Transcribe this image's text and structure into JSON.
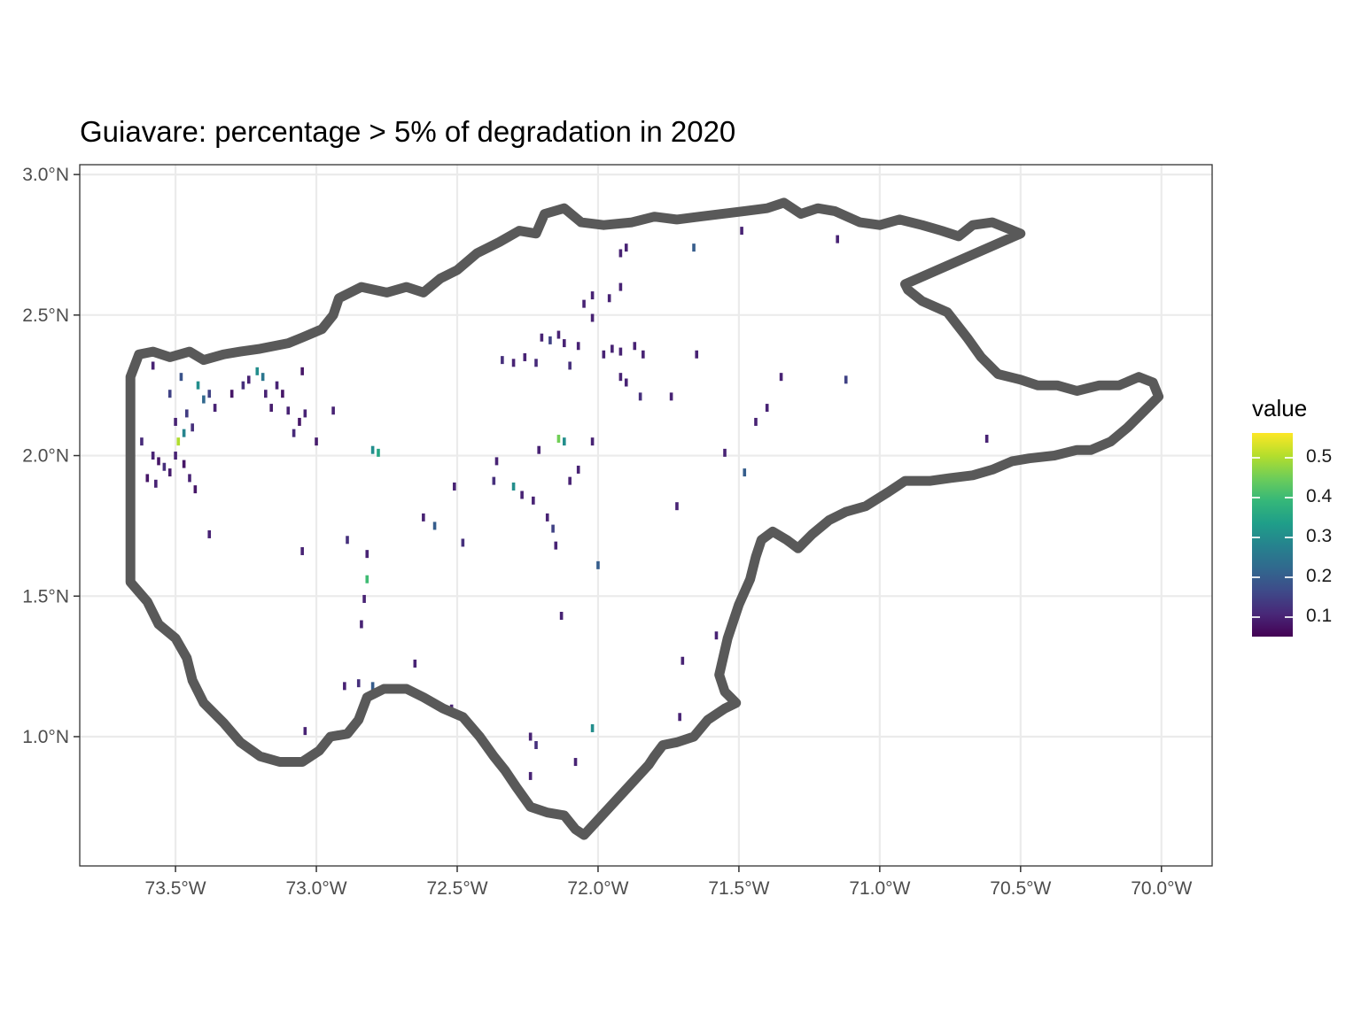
{
  "chart_data": {
    "type": "map-raster",
    "title": "Guiavare: percentage > 5% of degradation in 2020",
    "x_ticks": [
      "73.5°W",
      "73.0°W",
      "72.5°W",
      "72.0°W",
      "71.5°W",
      "71.0°W",
      "70.5°W",
      "70.0°W"
    ],
    "x_tick_values": [
      -73.5,
      -73.0,
      -72.5,
      -72.0,
      -71.5,
      -71.0,
      -70.5,
      -70.0
    ],
    "y_ticks": [
      "1.0°N",
      "1.5°N",
      "2.0°N",
      "2.5°N",
      "3.0°N"
    ],
    "y_tick_values": [
      1.0,
      1.5,
      2.0,
      2.5,
      3.0
    ],
    "xlim": [
      -73.84,
      -69.82
    ],
    "ylim": [
      0.54,
      3.035
    ],
    "grid": true,
    "legend": {
      "title": "value",
      "labels": [
        "0.5",
        "0.4",
        "0.3",
        "0.2",
        "0.1"
      ],
      "values": [
        0.5,
        0.4,
        0.3,
        0.2,
        0.1
      ],
      "range": [
        0.05,
        0.56
      ],
      "colormap": "viridis",
      "position": "right"
    },
    "outline_color": "#595959",
    "boundary": [
      [
        -73.66,
        2.28
      ],
      [
        -73.63,
        2.36
      ],
      [
        -73.58,
        2.37
      ],
      [
        -73.52,
        2.35
      ],
      [
        -73.45,
        2.37
      ],
      [
        -73.4,
        2.34
      ],
      [
        -73.33,
        2.36
      ],
      [
        -73.27,
        2.37
      ],
      [
        -73.2,
        2.38
      ],
      [
        -73.1,
        2.4
      ],
      [
        -73.05,
        2.42
      ],
      [
        -72.98,
        2.45
      ],
      [
        -72.94,
        2.5
      ],
      [
        -72.92,
        2.56
      ],
      [
        -72.84,
        2.6
      ],
      [
        -72.75,
        2.58
      ],
      [
        -72.68,
        2.6
      ],
      [
        -72.62,
        2.58
      ],
      [
        -72.56,
        2.63
      ],
      [
        -72.5,
        2.66
      ],
      [
        -72.43,
        2.72
      ],
      [
        -72.35,
        2.76
      ],
      [
        -72.28,
        2.8
      ],
      [
        -72.22,
        2.79
      ],
      [
        -72.19,
        2.86
      ],
      [
        -72.12,
        2.88
      ],
      [
        -72.06,
        2.83
      ],
      [
        -71.98,
        2.82
      ],
      [
        -71.88,
        2.83
      ],
      [
        -71.8,
        2.85
      ],
      [
        -71.72,
        2.84
      ],
      [
        -71.64,
        2.85
      ],
      [
        -71.56,
        2.86
      ],
      [
        -71.48,
        2.87
      ],
      [
        -71.4,
        2.88
      ],
      [
        -71.34,
        2.9
      ],
      [
        -71.28,
        2.86
      ],
      [
        -71.22,
        2.88
      ],
      [
        -71.16,
        2.87
      ],
      [
        -71.07,
        2.83
      ],
      [
        -71.0,
        2.82
      ],
      [
        -70.93,
        2.84
      ],
      [
        -70.85,
        2.82
      ],
      [
        -70.78,
        2.8
      ],
      [
        -70.72,
        2.78
      ],
      [
        -70.67,
        2.82
      ],
      [
        -70.6,
        2.83
      ],
      [
        -70.5,
        2.79
      ],
      [
        -70.91,
        2.61
      ],
      [
        -70.9,
        2.59
      ],
      [
        -70.85,
        2.55
      ],
      [
        -70.76,
        2.51
      ],
      [
        -70.69,
        2.42
      ],
      [
        -70.64,
        2.35
      ],
      [
        -70.58,
        2.29
      ],
      [
        -70.5,
        2.27
      ],
      [
        -70.44,
        2.25
      ],
      [
        -70.37,
        2.25
      ],
      [
        -70.3,
        2.23
      ],
      [
        -70.22,
        2.25
      ],
      [
        -70.15,
        2.25
      ],
      [
        -70.08,
        2.28
      ],
      [
        -70.03,
        2.26
      ],
      [
        -70.01,
        2.21
      ],
      [
        -70.06,
        2.16
      ],
      [
        -70.12,
        2.1
      ],
      [
        -70.18,
        2.05
      ],
      [
        -70.25,
        2.02
      ],
      [
        -70.3,
        2.02
      ],
      [
        -70.38,
        2.0
      ],
      [
        -70.47,
        1.99
      ],
      [
        -70.53,
        1.98
      ],
      [
        -70.6,
        1.95
      ],
      [
        -70.67,
        1.93
      ],
      [
        -70.75,
        1.92
      ],
      [
        -70.82,
        1.91
      ],
      [
        -70.91,
        1.91
      ],
      [
        -70.97,
        1.87
      ],
      [
        -71.05,
        1.82
      ],
      [
        -71.12,
        1.8
      ],
      [
        -71.18,
        1.77
      ],
      [
        -71.24,
        1.72
      ],
      [
        -71.29,
        1.67
      ],
      [
        -71.33,
        1.7
      ],
      [
        -71.38,
        1.73
      ],
      [
        -71.42,
        1.7
      ],
      [
        -71.44,
        1.64
      ],
      [
        -71.46,
        1.56
      ],
      [
        -71.5,
        1.47
      ],
      [
        -71.54,
        1.35
      ],
      [
        -71.57,
        1.22
      ],
      [
        -71.55,
        1.16
      ],
      [
        -71.51,
        1.12
      ],
      [
        -71.55,
        1.1
      ],
      [
        -71.61,
        1.06
      ],
      [
        -71.66,
        1.0
      ],
      [
        -71.72,
        0.98
      ],
      [
        -71.77,
        0.97
      ],
      [
        -71.8,
        0.93
      ],
      [
        -71.82,
        0.9
      ],
      [
        -72.05,
        0.65
      ],
      [
        -72.08,
        0.67
      ],
      [
        -72.12,
        0.72
      ],
      [
        -72.18,
        0.73
      ],
      [
        -72.24,
        0.75
      ],
      [
        -72.29,
        0.82
      ],
      [
        -72.33,
        0.88
      ],
      [
        -72.37,
        0.93
      ],
      [
        -72.42,
        1.0
      ],
      [
        -72.48,
        1.07
      ],
      [
        -72.55,
        1.1
      ],
      [
        -72.62,
        1.14
      ],
      [
        -72.68,
        1.17
      ],
      [
        -72.76,
        1.17
      ],
      [
        -72.82,
        1.14
      ],
      [
        -72.85,
        1.06
      ],
      [
        -72.89,
        1.01
      ],
      [
        -72.95,
        1.0
      ],
      [
        -72.99,
        0.95
      ],
      [
        -73.05,
        0.91
      ],
      [
        -73.13,
        0.91
      ],
      [
        -73.2,
        0.93
      ],
      [
        -73.27,
        0.98
      ],
      [
        -73.33,
        1.05
      ],
      [
        -73.4,
        1.12
      ],
      [
        -73.44,
        1.2
      ],
      [
        -73.46,
        1.28
      ],
      [
        -73.5,
        1.35
      ],
      [
        -73.56,
        1.4
      ],
      [
        -73.6,
        1.48
      ],
      [
        -73.66,
        1.55
      ],
      [
        -73.66,
        1.65
      ],
      [
        -73.66,
        1.8
      ],
      [
        -73.66,
        2.0
      ],
      [
        -73.66,
        2.28
      ]
    ],
    "cells": [
      [
        -73.58,
        2.0,
        0.1
      ],
      [
        -73.56,
        1.98,
        0.08
      ],
      [
        -73.54,
        1.96,
        0.12
      ],
      [
        -73.6,
        1.92,
        0.08
      ],
      [
        -73.57,
        1.9,
        0.1
      ],
      [
        -73.52,
        1.94,
        0.09
      ],
      [
        -73.5,
        2.0,
        0.1
      ],
      [
        -73.47,
        1.97,
        0.08
      ],
      [
        -73.45,
        1.92,
        0.1
      ],
      [
        -73.43,
        1.88,
        0.08
      ],
      [
        -73.62,
        2.05,
        0.11
      ],
      [
        -73.49,
        2.05,
        0.5
      ],
      [
        -73.47,
        2.08,
        0.28
      ],
      [
        -73.44,
        2.1,
        0.12
      ],
      [
        -73.46,
        2.15,
        0.14
      ],
      [
        -73.5,
        2.12,
        0.1
      ],
      [
        -73.4,
        2.2,
        0.22
      ],
      [
        -73.38,
        2.22,
        0.15
      ],
      [
        -73.42,
        2.25,
        0.3
      ],
      [
        -73.48,
        2.28,
        0.18
      ],
      [
        -73.36,
        2.17,
        0.1
      ],
      [
        -73.3,
        2.22,
        0.08
      ],
      [
        -73.26,
        2.25,
        0.12
      ],
      [
        -73.24,
        2.27,
        0.1
      ],
      [
        -73.21,
        2.3,
        0.3
      ],
      [
        -73.19,
        2.28,
        0.25
      ],
      [
        -73.18,
        2.22,
        0.1
      ],
      [
        -73.16,
        2.17,
        0.09
      ],
      [
        -73.14,
        2.25,
        0.1
      ],
      [
        -73.12,
        2.22,
        0.08
      ],
      [
        -73.1,
        2.16,
        0.1
      ],
      [
        -73.06,
        2.12,
        0.08
      ],
      [
        -73.04,
        2.15,
        0.1
      ],
      [
        -73.08,
        2.08,
        0.11
      ],
      [
        -73.0,
        2.05,
        0.09
      ],
      [
        -73.05,
        2.3,
        0.08
      ],
      [
        -73.58,
        2.32,
        0.1
      ],
      [
        -73.52,
        2.22,
        0.15
      ],
      [
        -73.38,
        1.72,
        0.1
      ],
      [
        -73.05,
        1.66,
        0.1
      ],
      [
        -72.94,
        2.16,
        0.1
      ],
      [
        -72.89,
        1.7,
        0.12
      ],
      [
        -72.8,
        2.02,
        0.3
      ],
      [
        -72.78,
        2.01,
        0.35
      ],
      [
        -72.82,
        1.56,
        0.4
      ],
      [
        -72.82,
        1.65,
        0.1
      ],
      [
        -72.84,
        1.4,
        0.1
      ],
      [
        -72.83,
        1.49,
        0.1
      ],
      [
        -72.9,
        1.18,
        0.1
      ],
      [
        -72.85,
        1.19,
        0.12
      ],
      [
        -72.8,
        1.18,
        0.2
      ],
      [
        -72.65,
        1.26,
        0.1
      ],
      [
        -72.52,
        1.1,
        0.1
      ],
      [
        -73.04,
        1.02,
        0.1
      ],
      [
        -72.48,
        1.69,
        0.12
      ],
      [
        -72.58,
        1.75,
        0.2
      ],
      [
        -72.62,
        1.78,
        0.1
      ],
      [
        -72.51,
        1.89,
        0.1
      ],
      [
        -72.36,
        1.98,
        0.1
      ],
      [
        -72.37,
        1.91,
        0.12
      ],
      [
        -72.3,
        1.89,
        0.3
      ],
      [
        -72.27,
        1.86,
        0.1
      ],
      [
        -72.23,
        1.84,
        0.1
      ],
      [
        -72.18,
        1.78,
        0.1
      ],
      [
        -72.16,
        1.74,
        0.15
      ],
      [
        -72.21,
        2.02,
        0.1
      ],
      [
        -72.14,
        2.06,
        0.45
      ],
      [
        -72.12,
        2.05,
        0.3
      ],
      [
        -72.1,
        1.91,
        0.1
      ],
      [
        -72.07,
        1.95,
        0.1
      ],
      [
        -72.0,
        1.61,
        0.2
      ],
      [
        -72.15,
        1.68,
        0.1
      ],
      [
        -72.13,
        1.43,
        0.1
      ],
      [
        -72.02,
        2.05,
        0.1
      ],
      [
        -72.24,
        1.0,
        0.1
      ],
      [
        -72.22,
        0.97,
        0.12
      ],
      [
        -72.08,
        0.91,
        0.1
      ],
      [
        -72.02,
        1.03,
        0.3
      ],
      [
        -72.24,
        0.86,
        0.1
      ],
      [
        -71.7,
        1.27,
        0.1
      ],
      [
        -71.71,
        1.07,
        0.1
      ],
      [
        -71.58,
        1.36,
        0.1
      ],
      [
        -71.72,
        1.82,
        0.1
      ],
      [
        -71.55,
        2.01,
        0.1
      ],
      [
        -71.48,
        1.94,
        0.2
      ],
      [
        -71.4,
        2.17,
        0.1
      ],
      [
        -71.44,
        2.12,
        0.1
      ],
      [
        -71.35,
        2.28,
        0.1
      ],
      [
        -71.12,
        2.27,
        0.15
      ],
      [
        -71.65,
        2.36,
        0.1
      ],
      [
        -71.66,
        2.74,
        0.2
      ],
      [
        -71.49,
        2.8,
        0.1
      ],
      [
        -71.15,
        2.77,
        0.1
      ],
      [
        -70.62,
        2.06,
        0.1
      ],
      [
        -70.65,
        2.36,
        0.1
      ],
      [
        -72.34,
        2.34,
        0.12
      ],
      [
        -72.3,
        2.33,
        0.1
      ],
      [
        -72.26,
        2.35,
        0.1
      ],
      [
        -72.22,
        2.33,
        0.11
      ],
      [
        -72.2,
        2.42,
        0.1
      ],
      [
        -72.17,
        2.41,
        0.15
      ],
      [
        -72.14,
        2.43,
        0.1
      ],
      [
        -72.12,
        2.4,
        0.1
      ],
      [
        -72.1,
        2.32,
        0.12
      ],
      [
        -72.07,
        2.39,
        0.1
      ],
      [
        -72.02,
        2.49,
        0.1
      ],
      [
        -71.98,
        2.36,
        0.1
      ],
      [
        -71.95,
        2.38,
        0.1
      ],
      [
        -71.92,
        2.37,
        0.1
      ],
      [
        -71.87,
        2.39,
        0.1
      ],
      [
        -71.84,
        2.36,
        0.1
      ],
      [
        -71.92,
        2.28,
        0.1
      ],
      [
        -71.9,
        2.26,
        0.1
      ],
      [
        -71.85,
        2.21,
        0.12
      ],
      [
        -71.74,
        2.21,
        0.1
      ],
      [
        -71.96,
        2.56,
        0.1
      ],
      [
        -71.92,
        2.6,
        0.1
      ],
      [
        -72.02,
        2.57,
        0.1
      ],
      [
        -71.92,
        2.72,
        0.1
      ],
      [
        -71.9,
        2.74,
        0.1
      ],
      [
        -72.05,
        2.54,
        0.1
      ]
    ]
  }
}
